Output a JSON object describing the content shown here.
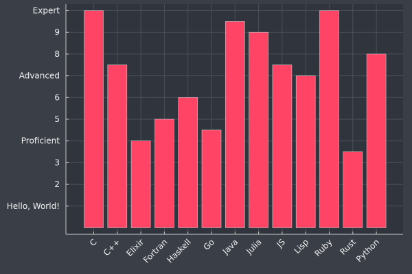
{
  "chart_data": {
    "type": "bar",
    "categories": [
      "C",
      "C++",
      "Elixir",
      "Fortran",
      "Haskell",
      "Go",
      "Java",
      "Julia",
      "JS",
      "Lisp",
      "Ruby",
      "Rust",
      "Python"
    ],
    "values": [
      10,
      7.5,
      4,
      5,
      6,
      4.5,
      9.5,
      9,
      7.5,
      7,
      10,
      3.5,
      8
    ],
    "ylim": [
      -0.3,
      10.3
    ],
    "yticks": [
      {
        "value": 1,
        "label": "Hello, World!"
      },
      {
        "value": 2,
        "label": "2"
      },
      {
        "value": 3,
        "label": "3"
      },
      {
        "value": 4,
        "label": "Proficient"
      },
      {
        "value": 5,
        "label": "5"
      },
      {
        "value": 6,
        "label": "6"
      },
      {
        "value": 7,
        "label": "Advanced"
      },
      {
        "value": 8,
        "label": "8"
      },
      {
        "value": 9,
        "label": "9"
      },
      {
        "value": 10,
        "label": "Expert"
      }
    ],
    "grid": true,
    "legend": "none",
    "colors": {
      "background": "#3a3e47",
      "plot_background": "#30343c",
      "bar_fill": "#ff4466",
      "text": "#f0f0f0",
      "grid": "#4a4f5a",
      "axis": "#c8c8c8"
    }
  }
}
